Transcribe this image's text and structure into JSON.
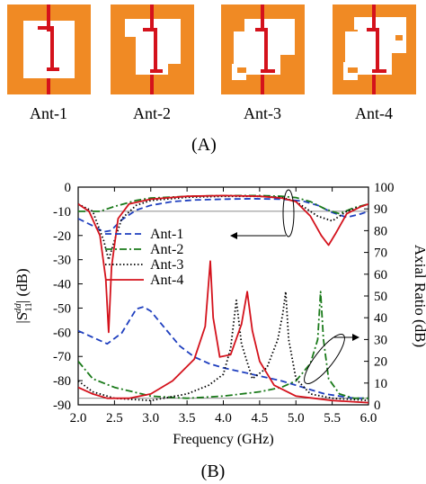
{
  "figure": {
    "antennas": [
      {
        "label": "Ant-1"
      },
      {
        "label": "Ant-2"
      },
      {
        "label": "Ant-3"
      },
      {
        "label": "Ant-4"
      }
    ],
    "panel_a_label": "(A)",
    "panel_b_label": "(B)",
    "colors": {
      "substrate": "#f08a24",
      "slot": "#ffffff",
      "feed": "#d4121c"
    }
  },
  "chart_data": {
    "type": "line",
    "xlabel": "Frequency (GHz)",
    "ylabel": "|S11dd| (dB)",
    "ylabel_main": "|S",
    "ylabel_sub": "11",
    "ylabel_sup": "dd",
    "ylabel_unit": "| (dB)",
    "y2label": "Axial Ratio (dB)",
    "xlim": [
      2.0,
      6.0
    ],
    "ylim": [
      -90,
      0
    ],
    "y2lim": [
      0,
      100
    ],
    "xticks": [
      "2.0",
      "2.5",
      "3.0",
      "3.5",
      "4.0",
      "4.5",
      "5.0",
      "5.5",
      "6.0"
    ],
    "yticks": [
      "0",
      "-10",
      "-20",
      "-30",
      "-40",
      "-50",
      "-60",
      "-70",
      "-80",
      "-90"
    ],
    "y2ticks": [
      "100",
      "90",
      "80",
      "70",
      "60",
      "50",
      "40",
      "30",
      "20",
      "10",
      "0"
    ],
    "legend_position": "center-left",
    "series": [
      {
        "name": "Ant-1",
        "color": "#1f3fbf",
        "dash": "dashed",
        "s11": {
          "x": [
            2.0,
            2.2,
            2.35,
            2.45,
            2.6,
            2.8,
            3.0,
            3.3,
            3.6,
            4.0,
            4.4,
            4.8,
            5.1,
            5.3,
            5.5,
            5.7,
            5.9,
            6.0
          ],
          "y": [
            -13,
            -16,
            -18.5,
            -18,
            -13.5,
            -9.5,
            -7.5,
            -6,
            -5.3,
            -5,
            -4.8,
            -5,
            -5.8,
            -7.5,
            -10.5,
            -12.5,
            -11,
            -10
          ]
        },
        "ar": {
          "x": [
            2.0,
            2.2,
            2.4,
            2.6,
            2.8,
            2.9,
            3.0,
            3.2,
            3.4,
            3.6,
            3.8,
            4.0,
            4.4,
            4.8,
            5.0,
            5.2,
            5.4,
            5.6,
            5.8,
            6.0
          ],
          "y": [
            34,
            31,
            28,
            33,
            44,
            45,
            43,
            35,
            27,
            22,
            19,
            17,
            14,
            11,
            9,
            7,
            5,
            4,
            3,
            3
          ]
        }
      },
      {
        "name": "Ant-2",
        "color": "#1a7a1a",
        "dash": "dashdot",
        "s11": {
          "x": [
            2.0,
            2.3,
            2.5,
            2.8,
            3.0,
            3.5,
            4.0,
            4.5,
            4.8,
            5.0,
            5.2,
            5.4,
            5.6,
            5.8,
            6.0
          ],
          "y": [
            -10,
            -10,
            -8,
            -5.5,
            -4.5,
            -3.8,
            -3.5,
            -3.5,
            -3.8,
            -4.3,
            -6,
            -9,
            -11,
            -8.5,
            -7
          ]
        },
        "ar": {
          "x": [
            2.0,
            2.2,
            2.5,
            3.0,
            3.5,
            4.0,
            4.5,
            4.8,
            5.0,
            5.2,
            5.3,
            5.34,
            5.38,
            5.45,
            5.6,
            5.8,
            6.0
          ],
          "y": [
            20,
            12,
            8,
            4,
            3,
            4,
            6,
            8,
            11,
            19,
            30,
            52,
            30,
            12,
            5,
            3,
            3
          ]
        }
      },
      {
        "name": "Ant-3",
        "color": "#000000",
        "dash": "dotted",
        "s11": {
          "x": [
            2.0,
            2.2,
            2.35,
            2.42,
            2.5,
            2.6,
            2.8,
            3.0,
            3.5,
            4.0,
            4.5,
            4.8,
            5.0,
            5.2,
            5.3,
            5.5,
            5.7,
            5.9,
            6.0
          ],
          "y": [
            -7,
            -10,
            -22,
            -30,
            -22,
            -13,
            -7.5,
            -5.5,
            -4.2,
            -3.8,
            -3.8,
            -4.2,
            -6,
            -10,
            -12,
            -14,
            -10,
            -8,
            -7
          ]
        },
        "ar": {
          "x": [
            2.0,
            2.2,
            2.5,
            3.0,
            3.5,
            3.8,
            4.0,
            4.1,
            4.18,
            4.25,
            4.4,
            4.6,
            4.75,
            4.82,
            4.86,
            4.9,
            5.0,
            5.2,
            5.5,
            6.0
          ],
          "y": [
            11,
            6,
            3,
            2,
            5,
            9,
            14,
            26,
            48,
            28,
            12,
            17,
            30,
            42,
            52,
            30,
            12,
            5,
            3,
            2
          ]
        }
      },
      {
        "name": "Ant-4",
        "color": "#d4121c",
        "dash": "solid",
        "s11": {
          "x": [
            2.0,
            2.15,
            2.3,
            2.38,
            2.42,
            2.46,
            2.55,
            2.7,
            3.0,
            3.5,
            4.0,
            4.5,
            4.8,
            5.0,
            5.2,
            5.35,
            5.45,
            5.55,
            5.7,
            5.9,
            6.0
          ],
          "y": [
            -7,
            -10,
            -20,
            -38,
            -60,
            -33,
            -13,
            -7,
            -5,
            -3.8,
            -3.5,
            -3.8,
            -4.5,
            -6,
            -12,
            -20,
            -24,
            -19,
            -11,
            -8,
            -7
          ]
        },
        "ar": {
          "x": [
            2.0,
            2.2,
            2.4,
            2.7,
            3.0,
            3.3,
            3.6,
            3.75,
            3.82,
            3.86,
            3.95,
            4.1,
            4.25,
            4.33,
            4.4,
            4.5,
            4.7,
            5.0,
            5.5,
            6.0
          ],
          "y": [
            8,
            5,
            3,
            3,
            5,
            11,
            21,
            36,
            66,
            40,
            22,
            23,
            37,
            52,
            34,
            20,
            9,
            4,
            2,
            1
          ]
        }
      }
    ]
  }
}
